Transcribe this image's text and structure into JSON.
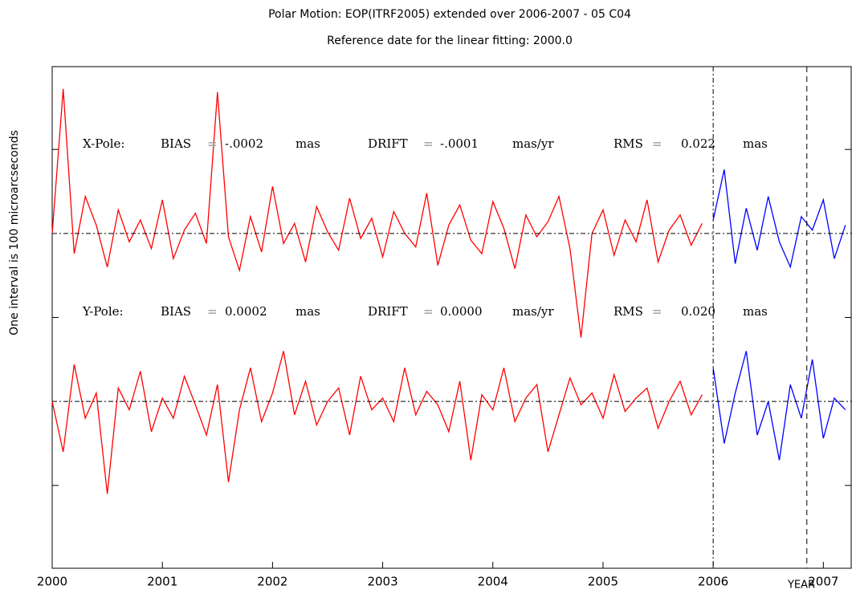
{
  "chart_data": {
    "type": "line",
    "title": "Polar Motion: EOP(ITRF2005) extended over 2006-2007  - 05 C04",
    "subtitle": "Reference date for the linear fitting: 2000.0",
    "ylabel": "One interval is 100 microarcseconds",
    "xlabel": "YEAR",
    "xlim": [
      2000,
      2007.26
    ],
    "xticks": [
      2000,
      2001,
      2002,
      2003,
      2004,
      2005,
      2006,
      2007
    ],
    "ylim": [
      -149.3,
      149.3
    ],
    "yticks": [
      100,
      0,
      -100
    ],
    "ytick_labels": false,
    "hlines": [
      50,
      -50
    ],
    "vlines": [
      2006,
      2006.85
    ],
    "annotations": [
      [
        "X-Pole:",
        "BIAS",
        "=",
        "-.0002",
        "mas",
        "DRIFT",
        "=",
        "-.0001",
        "mas/yr",
        "RMS",
        "=",
        "0.022",
        "mas"
      ],
      [
        "Y-Pole:",
        "BIAS",
        "=",
        "0.0002",
        "mas",
        "DRIFT",
        "=",
        "0.0000",
        "mas/yr",
        "RMS",
        "=",
        "0.020",
        "mas"
      ]
    ],
    "series": [
      {
        "color": "#ff0000",
        "x": [
          2000.0,
          2000.1,
          2000.2,
          2000.3,
          2000.4,
          2000.5,
          2000.6,
          2000.7,
          2000.8,
          2000.9,
          2001.0,
          2001.1,
          2001.2,
          2001.3,
          2001.4,
          2001.5,
          2001.6,
          2001.7,
          2001.8,
          2001.9,
          2002.0,
          2002.1,
          2002.2,
          2002.3,
          2002.4,
          2002.5,
          2002.6,
          2002.7,
          2002.8,
          2002.9,
          2003.0,
          2003.1,
          2003.2,
          2003.3,
          2003.4,
          2003.5,
          2003.6,
          2003.7,
          2003.8,
          2003.9,
          2004.0,
          2004.1,
          2004.2,
          2004.3,
          2004.4,
          2004.5,
          2004.6,
          2004.7,
          2004.8,
          2004.9,
          2005.0,
          2005.1,
          2005.2,
          2005.3,
          2005.4,
          2005.5,
          2005.6,
          2005.7,
          2005.8,
          2005.9
        ],
        "values": [
          50,
          136,
          38,
          72,
          55,
          30,
          64,
          45,
          58,
          41,
          70,
          35,
          52,
          62,
          44,
          134,
          48,
          28,
          60,
          39,
          78,
          44,
          56,
          33,
          66,
          51,
          40,
          71,
          47,
          59,
          36,
          63,
          50,
          42,
          74,
          31,
          55,
          67,
          46,
          38,
          69,
          53,
          29,
          61,
          48,
          57,
          72,
          41,
          -12,
          50,
          64,
          37,
          58,
          45,
          70,
          33,
          52,
          61,
          43,
          56
        ]
      },
      {
        "color": "#0000ff",
        "x": [
          2006.0,
          2006.1,
          2006.2,
          2006.3,
          2006.4,
          2006.5,
          2006.6,
          2006.7,
          2006.8,
          2006.9,
          2007.0,
          2007.1,
          2007.2
        ],
        "values": [
          58,
          88,
          32,
          65,
          40,
          72,
          45,
          30,
          60,
          52,
          70,
          35,
          55
        ]
      },
      {
        "color": "#ff0000",
        "x": [
          2000.0,
          2000.1,
          2000.2,
          2000.3,
          2000.4,
          2000.5,
          2000.6,
          2000.7,
          2000.8,
          2000.9,
          2001.0,
          2001.1,
          2001.2,
          2001.3,
          2001.4,
          2001.5,
          2001.6,
          2001.7,
          2001.8,
          2001.9,
          2002.0,
          2002.1,
          2002.2,
          2002.3,
          2002.4,
          2002.5,
          2002.6,
          2002.7,
          2002.8,
          2002.9,
          2003.0,
          2003.1,
          2003.2,
          2003.3,
          2003.4,
          2003.5,
          2003.6,
          2003.7,
          2003.8,
          2003.9,
          2004.0,
          2004.1,
          2004.2,
          2004.3,
          2004.4,
          2004.5,
          2004.6,
          2004.7,
          2004.8,
          2004.9,
          2005.0,
          2005.1,
          2005.2,
          2005.3,
          2005.4,
          2005.5,
          2005.6,
          2005.7,
          2005.8,
          2005.9
        ],
        "values": [
          -50,
          -80,
          -28,
          -60,
          -45,
          -105,
          -42,
          -55,
          -32,
          -68,
          -48,
          -60,
          -35,
          -52,
          -70,
          -40,
          -98,
          -55,
          -30,
          -62,
          -45,
          -20,
          -58,
          -38,
          -64,
          -50,
          -42,
          -70,
          -35,
          -55,
          -48,
          -62,
          -30,
          -58,
          -44,
          -52,
          -68,
          -38,
          -85,
          -46,
          -55,
          -30,
          -62,
          -48,
          -40,
          -80,
          -58,
          -36,
          -52,
          -45,
          -60,
          -34,
          -56,
          -48,
          -42,
          -66,
          -50,
          -38,
          -58,
          -46
        ]
      },
      {
        "color": "#0000ff",
        "x": [
          2006.0,
          2006.1,
          2006.2,
          2006.3,
          2006.4,
          2006.5,
          2006.6,
          2006.7,
          2006.8,
          2006.9,
          2007.0,
          2007.1,
          2007.2
        ],
        "values": [
          -30,
          -75,
          -45,
          -20,
          -70,
          -50,
          -85,
          -40,
          -60,
          -25,
          -72,
          -48,
          -55
        ]
      }
    ]
  }
}
